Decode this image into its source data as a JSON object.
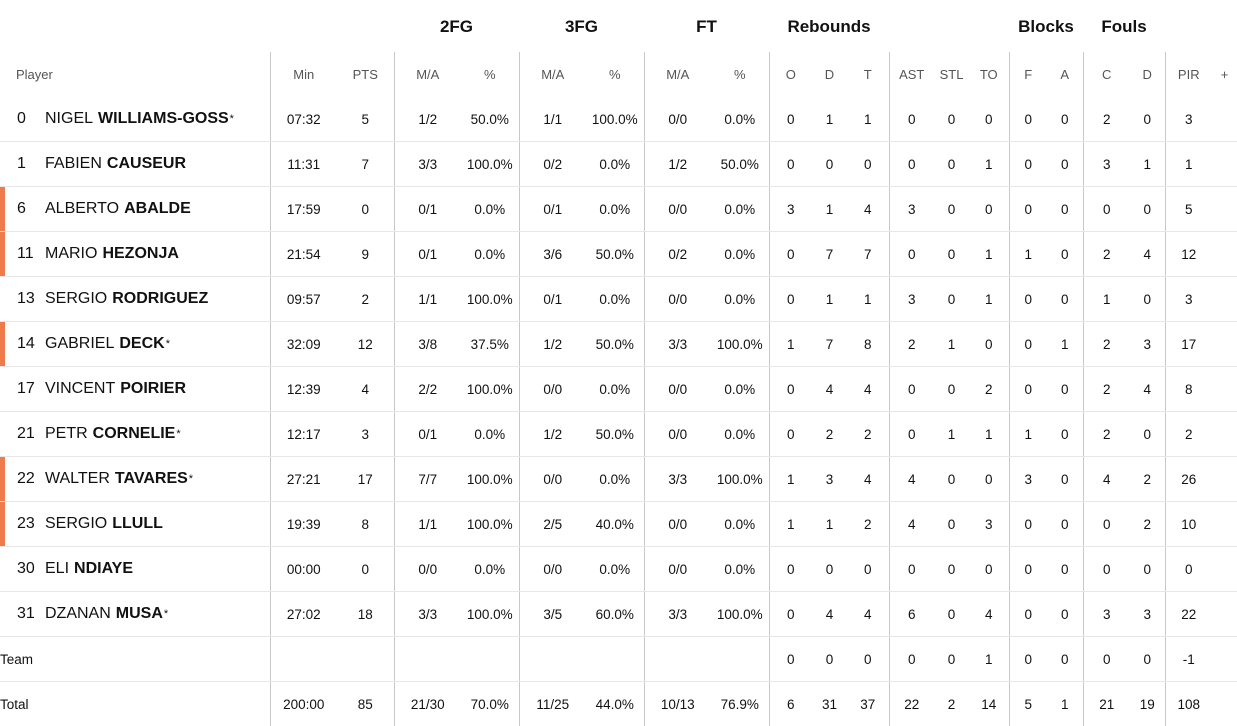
{
  "groups": {
    "fg2": "2FG",
    "fg3": "3FG",
    "ft": "FT",
    "rebounds": "Rebounds",
    "blocks": "Blocks",
    "fouls": "Fouls"
  },
  "columns": {
    "player": "Player",
    "min": "Min",
    "pts": "PTS",
    "fg2_ma": "M/A",
    "fg2_pct": "%",
    "fg3_ma": "M/A",
    "fg3_pct": "%",
    "ft_ma": "M/A",
    "ft_pct": "%",
    "reb_o": "O",
    "reb_d": "D",
    "reb_t": "T",
    "ast": "AST",
    "stl": "STL",
    "to": "TO",
    "blk_f": "F",
    "blk_a": "A",
    "foul_c": "C",
    "foul_d": "D",
    "pir": "PIR",
    "more": "+"
  },
  "accent_color": "#ef7a4b",
  "players": [
    {
      "number": "0",
      "first": "NIGEL",
      "last": "WILLIAMS-GOSS",
      "star": "*",
      "highlight": false,
      "stats": [
        "07:32",
        "5",
        "1/2",
        "50.0%",
        "1/1",
        "100.0%",
        "0/0",
        "0.0%",
        "0",
        "1",
        "1",
        "0",
        "0",
        "0",
        "0",
        "0",
        "2",
        "0",
        "3"
      ]
    },
    {
      "number": "1",
      "first": "FABIEN",
      "last": "CAUSEUR",
      "star": "",
      "highlight": false,
      "stats": [
        "11:31",
        "7",
        "3/3",
        "100.0%",
        "0/2",
        "0.0%",
        "1/2",
        "50.0%",
        "0",
        "0",
        "0",
        "0",
        "0",
        "1",
        "0",
        "0",
        "3",
        "1",
        "1"
      ]
    },
    {
      "number": "6",
      "first": "ALBERTO",
      "last": "ABALDE",
      "star": "",
      "highlight": true,
      "stats": [
        "17:59",
        "0",
        "0/1",
        "0.0%",
        "0/1",
        "0.0%",
        "0/0",
        "0.0%",
        "3",
        "1",
        "4",
        "3",
        "0",
        "0",
        "0",
        "0",
        "0",
        "0",
        "5"
      ]
    },
    {
      "number": "11",
      "first": "MARIO",
      "last": "HEZONJA",
      "star": "",
      "highlight": true,
      "stats": [
        "21:54",
        "9",
        "0/1",
        "0.0%",
        "3/6",
        "50.0%",
        "0/2",
        "0.0%",
        "0",
        "7",
        "7",
        "0",
        "0",
        "1",
        "1",
        "0",
        "2",
        "4",
        "12"
      ]
    },
    {
      "number": "13",
      "first": "SERGIO",
      "last": "RODRIGUEZ",
      "star": "",
      "highlight": false,
      "stats": [
        "09:57",
        "2",
        "1/1",
        "100.0%",
        "0/1",
        "0.0%",
        "0/0",
        "0.0%",
        "0",
        "1",
        "1",
        "3",
        "0",
        "1",
        "0",
        "0",
        "1",
        "0",
        "3"
      ]
    },
    {
      "number": "14",
      "first": "GABRIEL",
      "last": "DECK",
      "star": "*",
      "highlight": true,
      "stats": [
        "32:09",
        "12",
        "3/8",
        "37.5%",
        "1/2",
        "50.0%",
        "3/3",
        "100.0%",
        "1",
        "7",
        "8",
        "2",
        "1",
        "0",
        "0",
        "1",
        "2",
        "3",
        "17"
      ]
    },
    {
      "number": "17",
      "first": "VINCENT",
      "last": "POIRIER",
      "star": "",
      "highlight": false,
      "stats": [
        "12:39",
        "4",
        "2/2",
        "100.0%",
        "0/0",
        "0.0%",
        "0/0",
        "0.0%",
        "0",
        "4",
        "4",
        "0",
        "0",
        "2",
        "0",
        "0",
        "2",
        "4",
        "8"
      ]
    },
    {
      "number": "21",
      "first": "PETR",
      "last": "CORNELIE",
      "star": "*",
      "highlight": false,
      "stats": [
        "12:17",
        "3",
        "0/1",
        "0.0%",
        "1/2",
        "50.0%",
        "0/0",
        "0.0%",
        "0",
        "2",
        "2",
        "0",
        "1",
        "1",
        "1",
        "0",
        "2",
        "0",
        "2"
      ]
    },
    {
      "number": "22",
      "first": "WALTER",
      "last": "TAVARES",
      "star": "*",
      "highlight": true,
      "stats": [
        "27:21",
        "17",
        "7/7",
        "100.0%",
        "0/0",
        "0.0%",
        "3/3",
        "100.0%",
        "1",
        "3",
        "4",
        "4",
        "0",
        "0",
        "3",
        "0",
        "4",
        "2",
        "26"
      ]
    },
    {
      "number": "23",
      "first": "SERGIO",
      "last": "LLULL",
      "star": "",
      "highlight": true,
      "stats": [
        "19:39",
        "8",
        "1/1",
        "100.0%",
        "2/5",
        "40.0%",
        "0/0",
        "0.0%",
        "1",
        "1",
        "2",
        "4",
        "0",
        "3",
        "0",
        "0",
        "0",
        "2",
        "10"
      ]
    },
    {
      "number": "30",
      "first": "ELI",
      "last": "NDIAYE",
      "star": "",
      "highlight": false,
      "stats": [
        "00:00",
        "0",
        "0/0",
        "0.0%",
        "0/0",
        "0.0%",
        "0/0",
        "0.0%",
        "0",
        "0",
        "0",
        "0",
        "0",
        "0",
        "0",
        "0",
        "0",
        "0",
        "0"
      ]
    },
    {
      "number": "31",
      "first": "DZANAN",
      "last": "MUSA",
      "star": "*",
      "highlight": false,
      "stats": [
        "27:02",
        "18",
        "3/3",
        "100.0%",
        "3/5",
        "60.0%",
        "3/3",
        "100.0%",
        "0",
        "4",
        "4",
        "6",
        "0",
        "4",
        "0",
        "0",
        "3",
        "3",
        "22"
      ]
    }
  ],
  "team": {
    "label": "Team",
    "stats": [
      "",
      "",
      "",
      "",
      "",
      "",
      "",
      "",
      "0",
      "0",
      "0",
      "0",
      "0",
      "1",
      "0",
      "0",
      "0",
      "0",
      "-1"
    ]
  },
  "total": {
    "label": "Total",
    "stats": [
      "200:00",
      "85",
      "21/30",
      "70.0%",
      "11/25",
      "44.0%",
      "10/13",
      "76.9%",
      "6",
      "31",
      "37",
      "22",
      "2",
      "14",
      "5",
      "1",
      "21",
      "19",
      "108"
    ]
  }
}
